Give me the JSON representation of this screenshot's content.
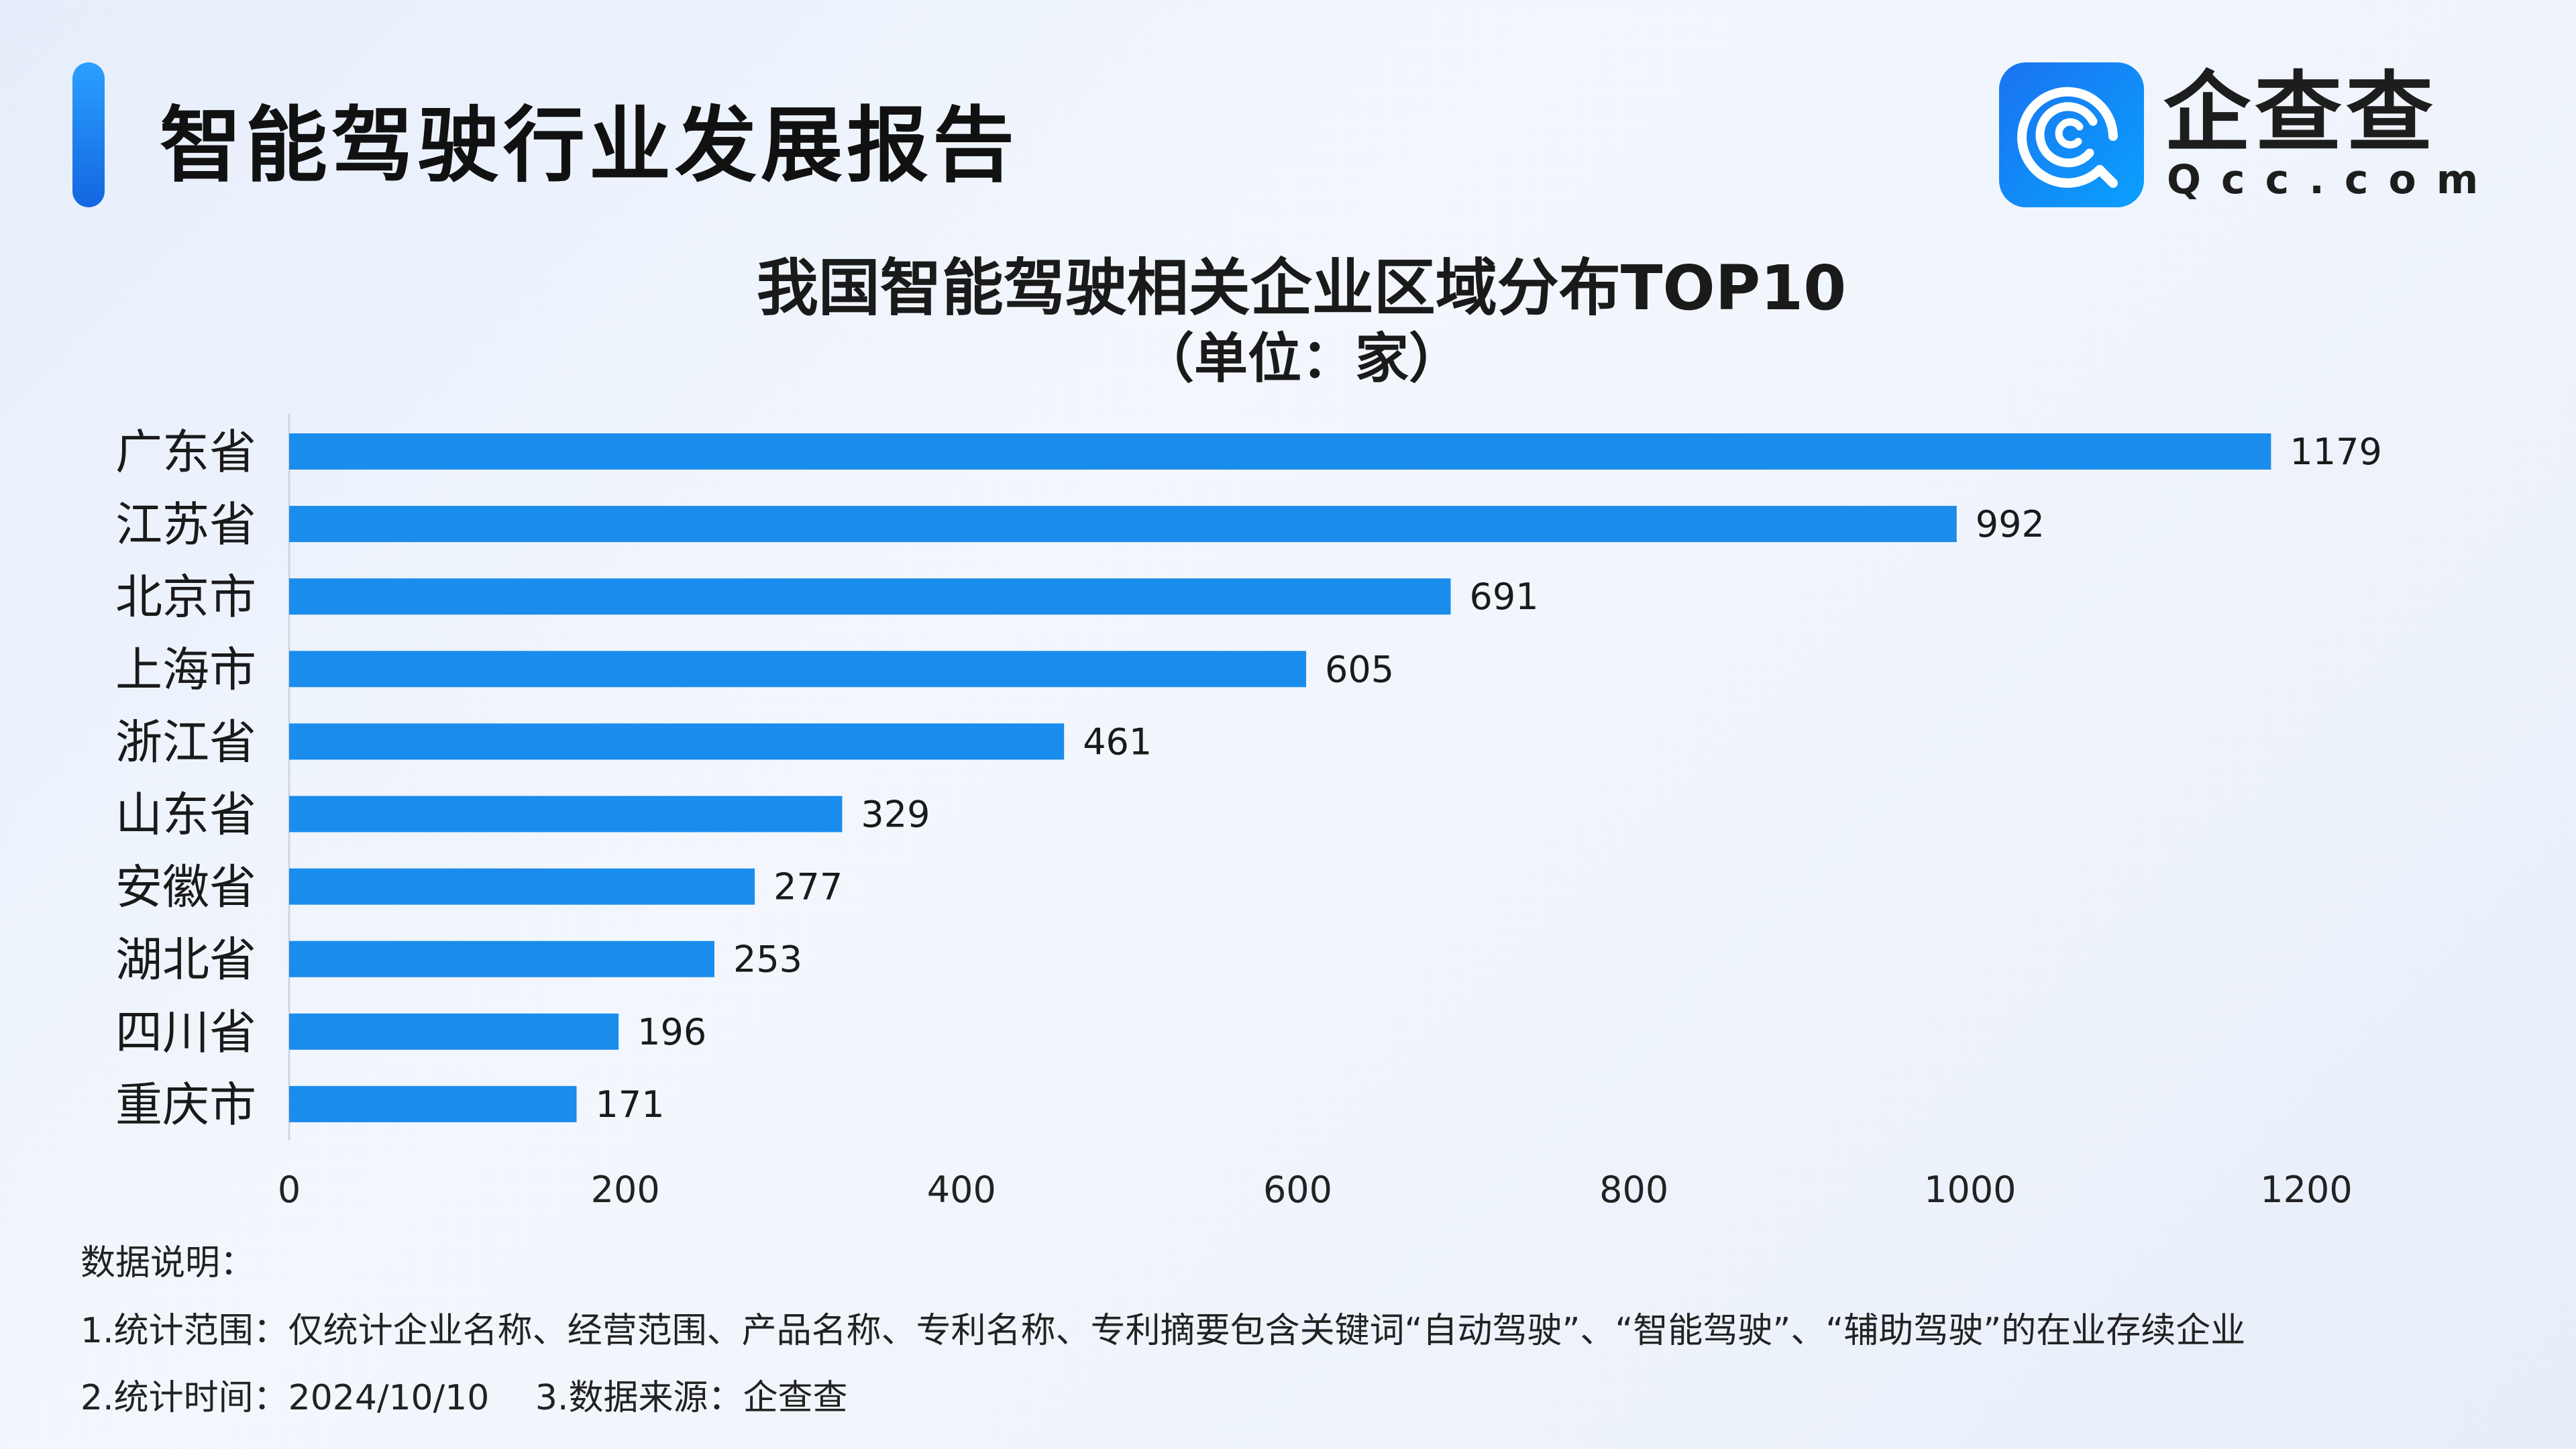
{
  "header": {
    "title": "智能驾驶行业发展报告",
    "logo_cn": "企查查",
    "logo_en": "Qcc.com"
  },
  "chart_data": {
    "type": "bar",
    "orientation": "horizontal",
    "title": "我国智能驾驶相关企业区域分布TOP10",
    "subtitle": "（单位：家）",
    "categories": [
      "广东省",
      "江苏省",
      "北京市",
      "上海市",
      "浙江省",
      "山东省",
      "安徽省",
      "湖北省",
      "四川省",
      "重庆市"
    ],
    "values": [
      1179,
      992,
      691,
      605,
      461,
      329,
      277,
      253,
      196,
      171
    ],
    "xlim": [
      0,
      1200
    ],
    "xticks": [
      "0",
      "200",
      "400",
      "600",
      "800",
      "1000",
      "1200"
    ],
    "grid": false,
    "bar_color": "#1a8cec"
  },
  "footer": {
    "heading": "数据说明：",
    "line1": "1.统计范围：仅统计企业名称、经营范围、产品名称、专利名称、专利摘要包含关键词“自动驾驶”、“智能驾驶”、“辅助驾驶”的在业存续企业",
    "line2": "2.统计时间：2024/10/10　 3.数据来源：企查查"
  }
}
